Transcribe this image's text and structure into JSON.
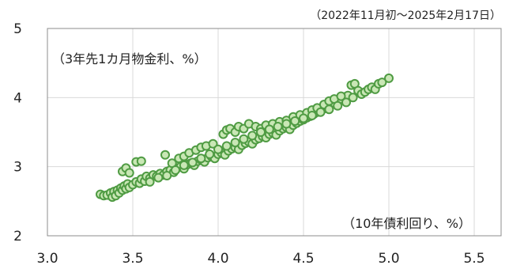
{
  "chart_data": {
    "type": "scatter",
    "subtitle": "（2022年11月初～2025年2月17日）",
    "xlabel": "（10年債利回り、%）",
    "ylabel": "（3年先1カ月物金利、%）",
    "xlim": [
      3.0,
      5.5
    ],
    "ylim": [
      2,
      5
    ],
    "x_ticks": [
      "3.0",
      "3.5",
      "4.0",
      "4.5",
      "5.0",
      "5.5"
    ],
    "y_ticks": [
      "2",
      "3",
      "4",
      "5"
    ],
    "grid": true,
    "colors": {
      "marker_fill": "#c9e7b5",
      "marker_edge": "#4f9b43",
      "grid": "#d9d9d9"
    },
    "points": [
      [
        3.31,
        2.6
      ],
      [
        3.33,
        2.58
      ],
      [
        3.35,
        2.59
      ],
      [
        3.37,
        2.62
      ],
      [
        3.38,
        2.56
      ],
      [
        3.39,
        2.64
      ],
      [
        3.4,
        2.58
      ],
      [
        3.41,
        2.66
      ],
      [
        3.42,
        2.62
      ],
      [
        3.43,
        2.69
      ],
      [
        3.44,
        2.66
      ],
      [
        3.45,
        2.72
      ],
      [
        3.46,
        2.68
      ],
      [
        3.47,
        2.75
      ],
      [
        3.48,
        2.7
      ],
      [
        3.5,
        2.74
      ],
      [
        3.52,
        2.78
      ],
      [
        3.54,
        2.76
      ],
      [
        3.55,
        2.82
      ],
      [
        3.57,
        2.79
      ],
      [
        3.58,
        2.86
      ],
      [
        3.6,
        2.83
      ],
      [
        3.62,
        2.88
      ],
      [
        3.64,
        2.86
      ],
      [
        3.66,
        2.9
      ],
      [
        3.68,
        2.88
      ],
      [
        3.7,
        2.93
      ],
      [
        3.72,
        2.95
      ],
      [
        3.74,
        2.92
      ],
      [
        3.76,
        2.98
      ],
      [
        3.78,
        3.0
      ],
      [
        3.8,
        2.97
      ],
      [
        3.82,
        3.03
      ],
      [
        3.84,
        3.05
      ],
      [
        3.86,
        3.02
      ],
      [
        3.88,
        3.08
      ],
      [
        3.9,
        3.1
      ],
      [
        3.92,
        3.07
      ],
      [
        3.94,
        3.13
      ],
      [
        3.96,
        3.15
      ],
      [
        3.98,
        3.12
      ],
      [
        4.0,
        3.18
      ],
      [
        4.02,
        3.2
      ],
      [
        4.04,
        3.17
      ],
      [
        4.06,
        3.23
      ],
      [
        4.08,
        3.26
      ],
      [
        4.1,
        3.28
      ],
      [
        4.12,
        3.25
      ],
      [
        4.14,
        3.31
      ],
      [
        4.16,
        3.34
      ],
      [
        4.18,
        3.36
      ],
      [
        4.2,
        3.33
      ],
      [
        4.22,
        3.39
      ],
      [
        4.24,
        3.41
      ],
      [
        4.26,
        3.44
      ],
      [
        4.28,
        3.42
      ],
      [
        4.3,
        3.47
      ],
      [
        4.32,
        3.49
      ],
      [
        4.34,
        3.46
      ],
      [
        4.36,
        3.52
      ],
      [
        4.38,
        3.55
      ],
      [
        4.4,
        3.57
      ],
      [
        4.42,
        3.54
      ],
      [
        4.44,
        3.6
      ],
      [
        4.46,
        3.63
      ],
      [
        4.48,
        3.66
      ],
      [
        4.5,
        3.68
      ],
      [
        4.52,
        3.71
      ],
      [
        4.54,
        3.73
      ],
      [
        4.56,
        3.76
      ],
      [
        4.58,
        3.79
      ],
      [
        4.6,
        3.81
      ],
      [
        4.62,
        3.84
      ],
      [
        4.64,
        3.86
      ],
      [
        4.66,
        3.89
      ],
      [
        4.68,
        3.92
      ],
      [
        4.7,
        3.95
      ],
      [
        4.72,
        3.98
      ],
      [
        4.74,
        4.01
      ],
      [
        4.76,
        4.03
      ],
      [
        3.44,
        2.93
      ],
      [
        3.46,
        2.98
      ],
      [
        3.48,
        2.91
      ],
      [
        3.52,
        3.07
      ],
      [
        3.55,
        3.08
      ],
      [
        3.69,
        3.17
      ],
      [
        3.73,
        3.05
      ],
      [
        3.77,
        3.12
      ],
      [
        3.8,
        3.15
      ],
      [
        3.83,
        3.2
      ],
      [
        3.87,
        3.24
      ],
      [
        3.9,
        3.28
      ],
      [
        3.93,
        3.3
      ],
      [
        3.97,
        3.33
      ],
      [
        4.03,
        3.47
      ],
      [
        4.05,
        3.53
      ],
      [
        4.07,
        3.55
      ],
      [
        4.1,
        3.5
      ],
      [
        4.12,
        3.58
      ],
      [
        4.15,
        3.55
      ],
      [
        4.18,
        3.62
      ],
      [
        4.22,
        3.58
      ],
      [
        4.25,
        3.55
      ],
      [
        4.28,
        3.6
      ],
      [
        4.32,
        3.62
      ],
      [
        4.36,
        3.65
      ],
      [
        4.4,
        3.67
      ],
      [
        4.44,
        3.72
      ],
      [
        4.48,
        3.75
      ],
      [
        4.52,
        3.78
      ],
      [
        4.55,
        3.82
      ],
      [
        4.58,
        3.85
      ],
      [
        4.62,
        3.9
      ],
      [
        4.65,
        3.95
      ],
      [
        4.68,
        3.98
      ],
      [
        4.72,
        4.02
      ],
      [
        4.78,
        4.18
      ],
      [
        4.8,
        4.2
      ],
      [
        4.82,
        4.1
      ],
      [
        4.84,
        4.05
      ],
      [
        4.86,
        4.08
      ],
      [
        4.88,
        4.12
      ],
      [
        4.9,
        4.15
      ],
      [
        4.92,
        4.12
      ],
      [
        4.94,
        4.2
      ],
      [
        4.96,
        4.22
      ],
      [
        5.0,
        4.28
      ],
      [
        4.79,
        4.0
      ],
      [
        3.6,
        2.78
      ],
      [
        3.65,
        2.84
      ],
      [
        3.7,
        2.87
      ],
      [
        3.75,
        2.95
      ],
      [
        3.8,
        3.02
      ],
      [
        3.85,
        3.06
      ],
      [
        3.9,
        3.12
      ],
      [
        3.95,
        3.18
      ],
      [
        4.0,
        3.25
      ],
      [
        4.05,
        3.3
      ],
      [
        4.1,
        3.35
      ],
      [
        4.15,
        3.4
      ],
      [
        4.2,
        3.45
      ],
      [
        4.25,
        3.5
      ],
      [
        4.3,
        3.54
      ],
      [
        4.35,
        3.58
      ],
      [
        4.4,
        3.62
      ],
      [
        4.45,
        3.66
      ],
      [
        4.5,
        3.7
      ],
      [
        4.55,
        3.74
      ],
      [
        4.6,
        3.79
      ],
      [
        4.65,
        3.83
      ],
      [
        4.7,
        3.88
      ],
      [
        4.75,
        3.93
      ]
    ]
  }
}
